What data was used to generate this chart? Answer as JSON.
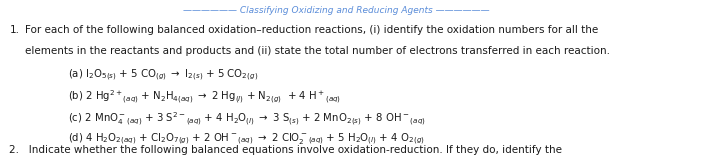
{
  "bg_color": "#ffffff",
  "text_color": "#1a1a1a",
  "top_text_color": "#5b8dd9",
  "title_number": "1.",
  "title_line1": "For each of the following balanced oxidation–reduction reactions, (i) identify the oxidation numbers for all the",
  "title_line2": "elements in the reactants and products and (ii) state the total number of electrons transferred in each reaction.",
  "reactions": [
    "(a) I₂O₅ ₊ + 5 CO ₋ → I₂ ₌ + 5 CO₂ ₋",
    "(b) 2 Hg²⁺₊₌ + N₂H₄ ₊₌ → 2 Hg ₌ +N₂ ₋  +4 H⁺₊₌",
    "(c) 2 MnO₄⁻ ₊₌ + 3 S²⁻ ₊₌ + 4 H₂O ₌ →3 S ₌ + 2 MnO₂ ₌ +8 OH⁻₊₌",
    "(d) 4 H₂O₂₊₌ + Cl₂O₇ ₋ +2 OH⁻₊₌ → 2 ClO₂⁻ ₊₌ + 5 H₂O ₌ +4 O₂ ₋"
  ],
  "bottom_text": "2.   Indicate whether the following balanced equations involve oxidation-reduction. If they do, identify the",
  "indent_reactions": 0.07,
  "indent_title": 0.035,
  "figsize": [
    7.2,
    1.61
  ],
  "dpi": 100
}
